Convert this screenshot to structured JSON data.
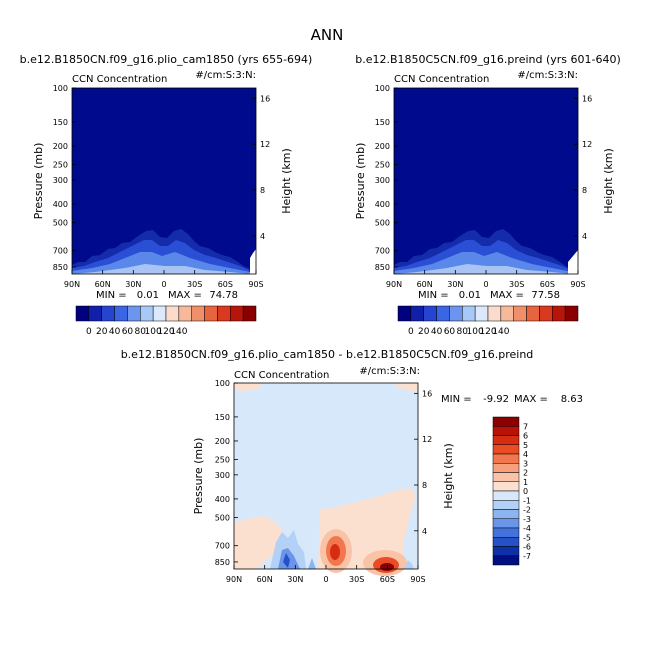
{
  "figure_title": "ANN",
  "chart_data": [
    {
      "type": "heatmap",
      "id": "left",
      "title": "b.e12.B1850CN.f09_g16.plio_cam1850 (yrs 655-694)",
      "variable": "CCN Concentration",
      "units": "#/cm:S:3:N:",
      "ylabel": "Pressure (mb)",
      "ylabel_right": "Height (km)",
      "xticks": [
        "90N",
        "60N",
        "30N",
        "0",
        "30S",
        "60S",
        "90S"
      ],
      "yticks": [
        "100",
        "150",
        "200",
        "250",
        "300",
        "400",
        "500",
        "700",
        "850"
      ],
      "height_ticks": [
        "16",
        "12",
        "8",
        "4"
      ],
      "min_label": "MIN =",
      "min_value": "0.01",
      "max_label": "MAX =",
      "max_value": "74.78",
      "colorbar_labels": [
        "0",
        "20",
        "40",
        "60",
        "80",
        "100",
        "120",
        "140"
      ],
      "colorbar_colors": [
        "#000080",
        "#1020a8",
        "#2545d0",
        "#3a66e4",
        "#6b95ee",
        "#a8c8f6",
        "#dce9fb",
        "#fbdccc",
        "#f6b99c",
        "#f0906a",
        "#e8643f",
        "#d8391f",
        "#b8150a",
        "#8a0000"
      ]
    },
    {
      "type": "heatmap",
      "id": "right",
      "title": "b.e12.B1850C5CN.f09_g16.preind (yrs 601-640)",
      "variable": "CCN Concentration",
      "units": "#/cm:S:3:N:",
      "ylabel": "Pressure (mb)",
      "ylabel_right": "Height (km)",
      "xticks": [
        "90N",
        "60N",
        "30N",
        "0",
        "30S",
        "60S",
        "90S"
      ],
      "yticks": [
        "100",
        "150",
        "200",
        "250",
        "300",
        "400",
        "500",
        "700",
        "850"
      ],
      "height_ticks": [
        "16",
        "12",
        "8",
        "4"
      ],
      "min_label": "MIN =",
      "min_value": "0.01",
      "max_label": "MAX =",
      "max_value": "77.58",
      "colorbar_labels": [
        "0",
        "20",
        "40",
        "60",
        "80",
        "100",
        "120",
        "140"
      ],
      "colorbar_colors": [
        "#000080",
        "#1020a8",
        "#2545d0",
        "#3a66e4",
        "#6b95ee",
        "#a8c8f6",
        "#dce9fb",
        "#fbdccc",
        "#f6b99c",
        "#f0906a",
        "#e8643f",
        "#d8391f",
        "#b8150a",
        "#8a0000"
      ]
    },
    {
      "type": "heatmap",
      "id": "diff",
      "title": "b.e12.B1850CN.f09_g16.plio_cam1850 - b.e12.B1850C5CN.f09_g16.preind",
      "variable": "CCN Concentration",
      "units": "#/cm:S:3:N:",
      "ylabel": "Pressure (mb)",
      "ylabel_right": "Height (km)",
      "xticks": [
        "90N",
        "60N",
        "30N",
        "0",
        "30S",
        "60S",
        "90S"
      ],
      "yticks": [
        "100",
        "150",
        "200",
        "250",
        "300",
        "400",
        "500",
        "700",
        "850"
      ],
      "height_ticks": [
        "16",
        "12",
        "8",
        "4"
      ],
      "min_label": "MIN =",
      "min_value": "-9.92",
      "max_label": "MAX =",
      "max_value": "8.63",
      "colorbar_labels": [
        "7",
        "6",
        "5",
        "4",
        "3",
        "2",
        "1",
        "0",
        "-1",
        "-2",
        "-3",
        "-4",
        "-5",
        "-6",
        "-7"
      ],
      "colorbar_colors": [
        "#8c0000",
        "#b81208",
        "#d62c12",
        "#ea4d26",
        "#f2774e",
        "#f6a07e",
        "#f9c3a8",
        "#fbe0cf",
        "#d6e8fa",
        "#b3d1f6",
        "#8cb4f0",
        "#6a95e8",
        "#4472dc",
        "#2650c8",
        "#1030a8",
        "#001080"
      ]
    }
  ]
}
